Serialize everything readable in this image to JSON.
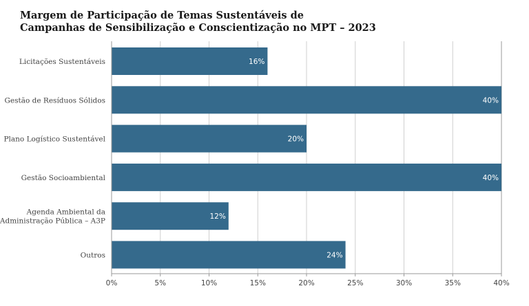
{
  "chart_data": {
    "type": "bar",
    "orientation": "horizontal",
    "title": [
      "Margem de Participação de Temas Sustentáveis de",
      "Campanhas de Sensibilização e Conscientização no MPT – 2023"
    ],
    "categories": [
      [
        "Licitações Sustentáveis"
      ],
      [
        "Gestão de Resíduos Sólidos"
      ],
      [
        "Plano Logístico Sustentável"
      ],
      [
        "Gestão Socioambiental"
      ],
      [
        "Agenda Ambiental da",
        "Administração Pública – A3P"
      ],
      [
        "Outros"
      ]
    ],
    "values": [
      16,
      40,
      20,
      40,
      12,
      24
    ],
    "data_labels": [
      "16%",
      "40%",
      "20%",
      "40%",
      "12%",
      "24%"
    ],
    "xlim": [
      0,
      40
    ],
    "xticks": [
      0,
      5,
      10,
      15,
      20,
      25,
      30,
      35,
      40
    ],
    "xtick_labels": [
      "0%",
      "5%",
      "10%",
      "15%",
      "20%",
      "25%",
      "30%",
      "35%",
      "40%"
    ],
    "grid": true,
    "legend": "none",
    "bar_color": "#356a8c"
  }
}
